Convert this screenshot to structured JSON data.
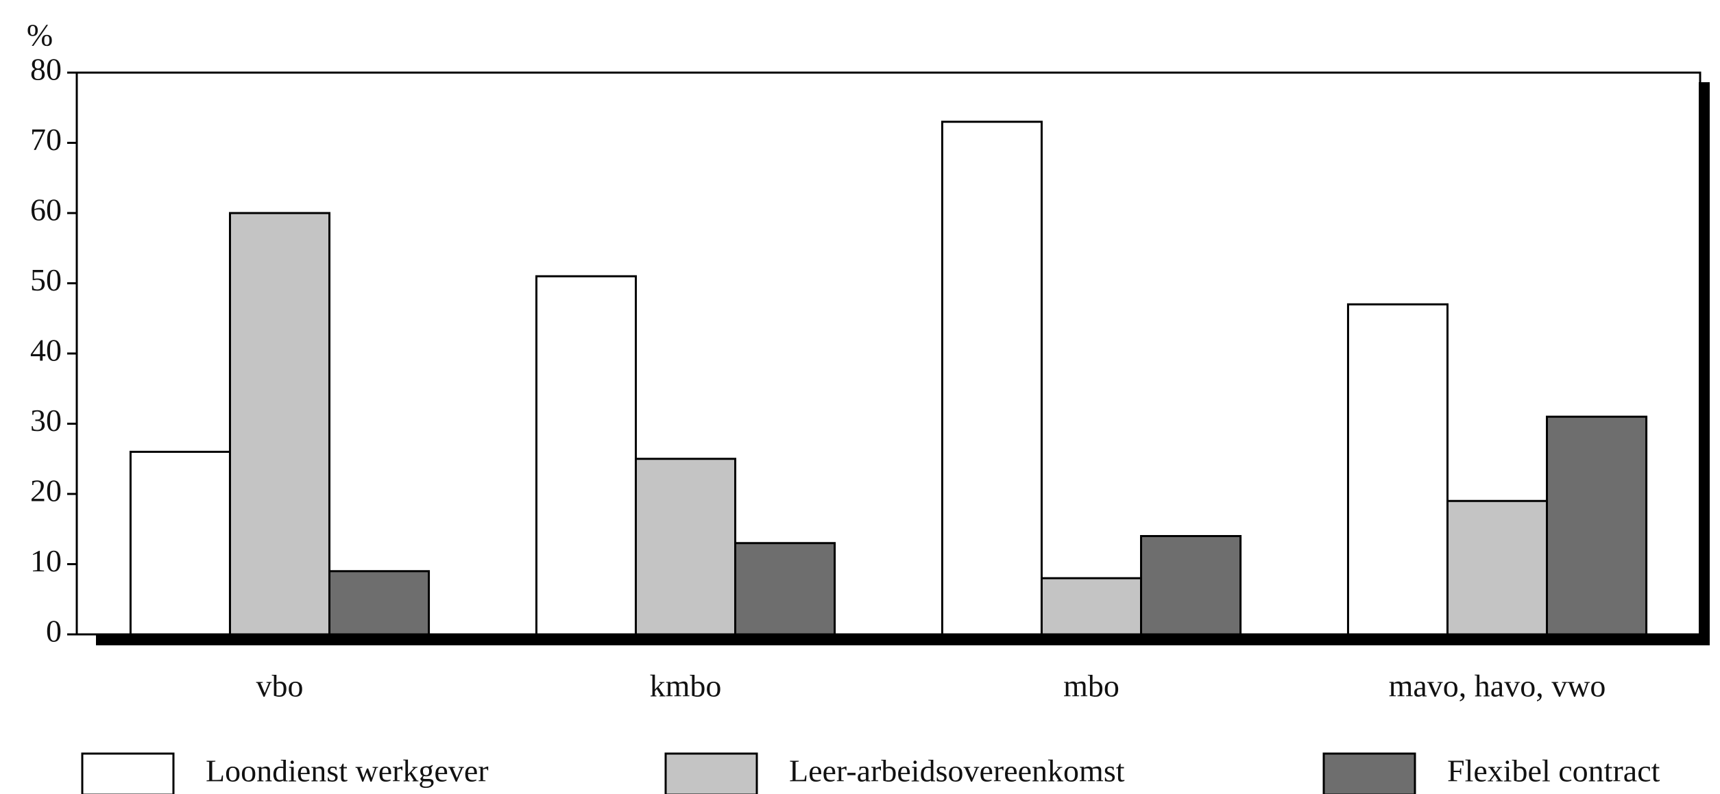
{
  "chart_data": {
    "type": "bar",
    "y_label": "%",
    "categories": [
      "vbo",
      "kmbo",
      "mbo",
      "mavo, havo, vwo"
    ],
    "series": [
      {
        "name": "Loondienst werkgever",
        "color": "#ffffff",
        "values": [
          26,
          51,
          73,
          47
        ]
      },
      {
        "name": "Leer-arbeidsovereenkomst",
        "color": "#c4c4c4",
        "values": [
          60,
          25,
          8,
          19
        ]
      },
      {
        "name": "Flexibel contract",
        "color": "#6e6e6e",
        "values": [
          9,
          13,
          14,
          31
        ]
      }
    ],
    "ylim": [
      0,
      80
    ],
    "yticks": [
      0,
      10,
      20,
      30,
      40,
      50,
      60,
      70,
      80
    ],
    "grid": false,
    "legend": "bottom"
  }
}
